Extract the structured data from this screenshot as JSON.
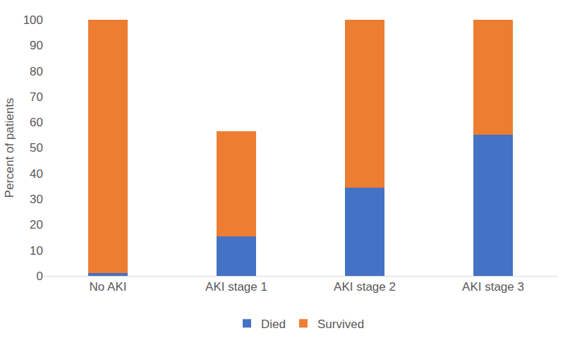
{
  "chart_data": {
    "type": "bar",
    "stacked": true,
    "categories": [
      "No AKI",
      "AKI stage 1",
      "AKI stage 2",
      "AKI stage 3"
    ],
    "series": [
      {
        "name": "Died",
        "color": "#4472c4",
        "values": [
          1,
          15.5,
          34.5,
          55
        ]
      },
      {
        "name": "Survived",
        "color": "#ed7d31",
        "values": [
          99,
          41,
          65.5,
          45
        ]
      }
    ],
    "y_label": "Percent of patients",
    "ylim": [
      0,
      100
    ],
    "yticks": [
      0,
      10,
      20,
      30,
      40,
      50,
      60,
      70,
      80,
      90,
      100
    ],
    "grid": false,
    "legend": "bottom"
  }
}
